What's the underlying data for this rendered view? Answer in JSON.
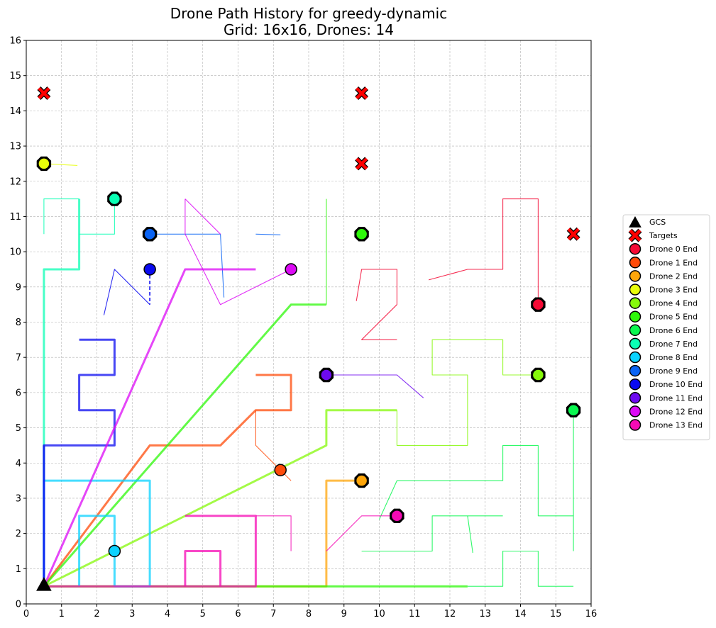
{
  "chart_data": {
    "type": "scatter",
    "title": "Drone Path History for greedy-dynamic",
    "subtitle": "Grid: 16x16, Drones: 14",
    "xlabel": "",
    "ylabel": "",
    "xlim": [
      0,
      16
    ],
    "ylim": [
      0,
      16
    ],
    "ticks": [
      "0",
      "1",
      "2",
      "3",
      "4",
      "5",
      "6",
      "7",
      "8",
      "9",
      "10",
      "11",
      "12",
      "13",
      "14",
      "15",
      "16"
    ],
    "grid": true,
    "legend_position": "outside-right",
    "gcs": {
      "name": "GCS",
      "x": 0.5,
      "y": 0.5,
      "color": "#000000"
    },
    "targets": {
      "name": "Targets",
      "color": "#ff0000",
      "points": [
        [
          0.5,
          14.5
        ],
        [
          9.5,
          14.5
        ],
        [
          9.5,
          12.5
        ],
        [
          15.5,
          10.5
        ]
      ]
    },
    "series": [
      {
        "name": "Drone 0 End",
        "color": "#f50a35",
        "end": [
          14.5,
          8.5
        ],
        "ring": true,
        "bold": [],
        "thin": [
          [
            [
              11.4,
              9.2
            ],
            [
              12.5,
              9.5
            ],
            [
              13.5,
              9.5
            ],
            [
              13.5,
              11.5
            ],
            [
              14.5,
              11.5
            ],
            [
              14.5,
              8.5
            ]
          ],
          [
            [
              9.35,
              8.6
            ],
            [
              9.5,
              9.5
            ],
            [
              10.5,
              9.5
            ],
            [
              10.5,
              8.5
            ],
            [
              9.5,
              7.5
            ],
            [
              10.5,
              7.5
            ]
          ]
        ]
      },
      {
        "name": "Drone 1 End",
        "color": "#ff4b0a",
        "end": [
          7.2,
          3.8
        ],
        "ring": false,
        "bold": [
          [
            [
              0.5,
              0.5
            ],
            [
              3.5,
              4.5
            ],
            [
              5.5,
              4.5
            ],
            [
              6.5,
              5.5
            ],
            [
              7.5,
              5.5
            ],
            [
              7.5,
              6.5
            ],
            [
              6.5,
              6.5
            ]
          ]
        ],
        "thin": [
          [
            [
              6.5,
              5.5
            ],
            [
              6.5,
              4.5
            ],
            [
              7.5,
              3.5
            ]
          ]
        ]
      },
      {
        "name": "Drone 2 End",
        "color": "#ffa60a",
        "end": [
          9.5,
          3.5
        ],
        "ring": true,
        "bold": [
          [
            [
              0.5,
              0.5
            ],
            [
              8.5,
              0.5
            ],
            [
              8.5,
              3.5
            ],
            [
              9.5,
              3.5
            ]
          ]
        ],
        "thin": []
      },
      {
        "name": "Drone 3 End",
        "color": "#e8ff0a",
        "end": [
          0.5,
          12.5
        ],
        "ring": true,
        "bold": [],
        "thin": [
          [
            [
              0.5,
              12.5
            ],
            [
              1.45,
              12.45
            ]
          ]
        ]
      },
      {
        "name": "Drone 4 End",
        "color": "#86f80a",
        "end": [
          14.5,
          6.5
        ],
        "ring": true,
        "bold": [
          [
            [
              0.5,
              0.5
            ],
            [
              8.5,
              4.5
            ],
            [
              8.5,
              5.5
            ],
            [
              10.5,
              5.5
            ]
          ]
        ],
        "thin": [
          [
            [
              10.5,
              5.5
            ],
            [
              10.5,
              4.5
            ],
            [
              12.5,
              4.5
            ],
            [
              12.5,
              6.5
            ],
            [
              11.5,
              6.5
            ],
            [
              11.5,
              7.5
            ],
            [
              13.5,
              7.5
            ],
            [
              13.5,
              6.5
            ],
            [
              14.5,
              6.5
            ]
          ]
        ]
      },
      {
        "name": "Drone 5 End",
        "color": "#2ef80a",
        "end": [
          9.5,
          10.5
        ],
        "ring": true,
        "bold": [
          [
            [
              0.5,
              0.5
            ],
            [
              7.5,
              8.5
            ],
            [
              8.5,
              8.5
            ]
          ],
          [
            [
              0.5,
              0.5
            ],
            [
              12.5,
              0.5
            ]
          ]
        ],
        "thin": [
          [
            [
              8.5,
              8.5
            ],
            [
              8.5,
              11.5
            ]
          ]
        ]
      },
      {
        "name": "Drone 6 End",
        "color": "#0af850",
        "end": [
          15.5,
          5.5
        ],
        "ring": true,
        "bold": [],
        "thin": [
          [
            [
              12.5,
              0.5
            ],
            [
              13.5,
              0.5
            ],
            [
              13.5,
              1.5
            ],
            [
              14.5,
              1.5
            ],
            [
              14.5,
              0.5
            ],
            [
              15.5,
              0.5
            ]
          ],
          [
            [
              9.5,
              1.5
            ],
            [
              11.5,
              1.5
            ],
            [
              11.5,
              2.5
            ],
            [
              13.5,
              2.5
            ]
          ],
          [
            [
              10.0,
              2.4
            ],
            [
              10.5,
              3.5
            ],
            [
              13.5,
              3.5
            ],
            [
              13.5,
              4.5
            ],
            [
              14.5,
              4.5
            ],
            [
              14.5,
              2.5
            ],
            [
              15.5,
              2.5
            ],
            [
              15.5,
              1.5
            ]
          ],
          [
            [
              12.5,
              2.5
            ],
            [
              12.65,
              1.45
            ]
          ],
          [
            [
              15.5,
              5.5
            ],
            [
              15.5,
              2.5
            ]
          ]
        ]
      },
      {
        "name": "Drone 7 End",
        "color": "#0affb4",
        "end": [
          2.5,
          11.5
        ],
        "ring": true,
        "bold": [
          [
            [
              0.5,
              0.5
            ],
            [
              0.5,
              9.5
            ],
            [
              1.5,
              9.5
            ],
            [
              1.5,
              11.5
            ]
          ]
        ],
        "thin": [
          [
            [
              0.5,
              10.5
            ],
            [
              0.5,
              11.5
            ],
            [
              1.5,
              11.5
            ]
          ],
          [
            [
              1.5,
              10.5
            ],
            [
              2.5,
              10.5
            ],
            [
              2.5,
              11.5
            ]
          ]
        ]
      },
      {
        "name": "Drone 8 End",
        "color": "#0ad2ff",
        "end": [
          2.5,
          1.5
        ],
        "ring": false,
        "bold": [
          [
            [
              0.5,
              0.5
            ],
            [
              0.5,
              3.5
            ],
            [
              3.5,
              3.5
            ],
            [
              3.5,
              0.5
            ],
            [
              2.5,
              0.5
            ],
            [
              2.5,
              2.5
            ],
            [
              1.5,
              2.5
            ],
            [
              1.5,
              0.5
            ]
          ]
        ],
        "thin": []
      },
      {
        "name": "Drone 9 End",
        "color": "#0a64f5",
        "end": [
          3.5,
          10.5
        ],
        "ring": true,
        "bold": [
          [
            [
              0.5,
              0.5
            ],
            [
              0.5,
              4.5
            ]
          ]
        ],
        "thin": [
          [
            [
              3.5,
              10.5
            ],
            [
              5.5,
              10.5
            ],
            [
              5.6,
              8.7
            ]
          ],
          [
            [
              6.5,
              10.5
            ],
            [
              7.2,
              10.48
            ]
          ]
        ]
      },
      {
        "name": "Drone 10 End",
        "color": "#0a0af0",
        "end": [
          3.5,
          9.5
        ],
        "ring": false,
        "bold": [
          [
            [
              0.5,
              0.5
            ],
            [
              0.5,
              4.5
            ],
            [
              2.5,
              4.5
            ],
            [
              2.5,
              5.5
            ],
            [
              1.5,
              5.5
            ],
            [
              1.5,
              6.5
            ],
            [
              2.5,
              6.5
            ],
            [
              2.5,
              7.5
            ],
            [
              1.5,
              7.5
            ]
          ]
        ],
        "thin": [
          [
            [
              2.2,
              8.2
            ],
            [
              2.5,
              9.5
            ],
            [
              3.5,
              8.5
            ]
          ]
        ],
        "dashed": [
          [
            [
              3.5,
              9.5
            ],
            [
              3.5,
              8.5
            ]
          ]
        ]
      },
      {
        "name": "Drone 11 End",
        "color": "#6e0af0",
        "end": [
          8.5,
          6.5
        ],
        "ring": true,
        "bold": [],
        "thin": [
          [
            [
              8.5,
              6.5
            ],
            [
              10.5,
              6.5
            ],
            [
              11.25,
              5.85
            ]
          ]
        ]
      },
      {
        "name": "Drone 12 End",
        "color": "#dc0af5",
        "end": [
          7.5,
          9.5
        ],
        "ring": false,
        "bold": [
          [
            [
              0.5,
              0.5
            ],
            [
              4.5,
              9.5
            ],
            [
              6.5,
              9.5
            ]
          ]
        ],
        "thin": [
          [
            [
              4.5,
              11.5
            ],
            [
              4.5,
              10.5
            ],
            [
              5.5,
              8.5
            ],
            [
              7.5,
              9.5
            ]
          ],
          [
            [
              4.5,
              11.5
            ],
            [
              5.5,
              10.5
            ]
          ]
        ]
      },
      {
        "name": "Drone 13 End",
        "color": "#f50ab4",
        "end": [
          10.5,
          2.5
        ],
        "ring": true,
        "bold": [
          [
            [
              0.5,
              0.5
            ],
            [
              6.5,
              0.5
            ],
            [
              6.5,
              2.5
            ],
            [
              4.5,
              2.5
            ]
          ],
          [
            [
              4.5,
              0.5
            ],
            [
              4.5,
              1.5
            ],
            [
              5.5,
              1.5
            ],
            [
              5.5,
              0.5
            ]
          ]
        ],
        "thin": [
          [
            [
              6.5,
              2.5
            ],
            [
              7.5,
              2.5
            ],
            [
              7.5,
              1.5
            ]
          ],
          [
            [
              8.5,
              1.5
            ],
            [
              9.5,
              2.5
            ],
            [
              10.5,
              2.5
            ]
          ]
        ]
      }
    ]
  }
}
